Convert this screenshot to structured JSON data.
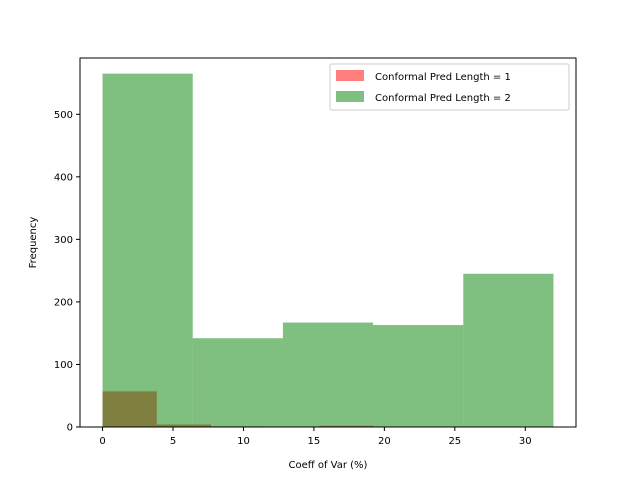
{
  "chart_data": {
    "type": "bar",
    "subtype": "overlaid-histogram",
    "title": "",
    "xlabel": "Coeff of Var (%)",
    "ylabel": "Frequency",
    "xlim": [
      -1.6,
      33.6
    ],
    "ylim": [
      0,
      590
    ],
    "xticks": [
      0,
      5,
      10,
      15,
      20,
      25,
      30
    ],
    "yticks": [
      0,
      100,
      200,
      300,
      400,
      500
    ],
    "grid": false,
    "legend": "top-right",
    "series": [
      {
        "name": "Conformal Pred Length = 1",
        "color": "#ff0000",
        "alpha": 0.5,
        "bin_edges": [
          0,
          3.85,
          7.7,
          11.55,
          15.4,
          19.25
        ],
        "counts": [
          57,
          4,
          1,
          0,
          2
        ]
      },
      {
        "name": "Conformal Pred Length = 2",
        "color": "#008000",
        "alpha": 0.5,
        "bin_edges": [
          0,
          6.4,
          12.8,
          19.2,
          25.6,
          32.0
        ],
        "counts": [
          565,
          142,
          167,
          163,
          245
        ]
      }
    ]
  }
}
